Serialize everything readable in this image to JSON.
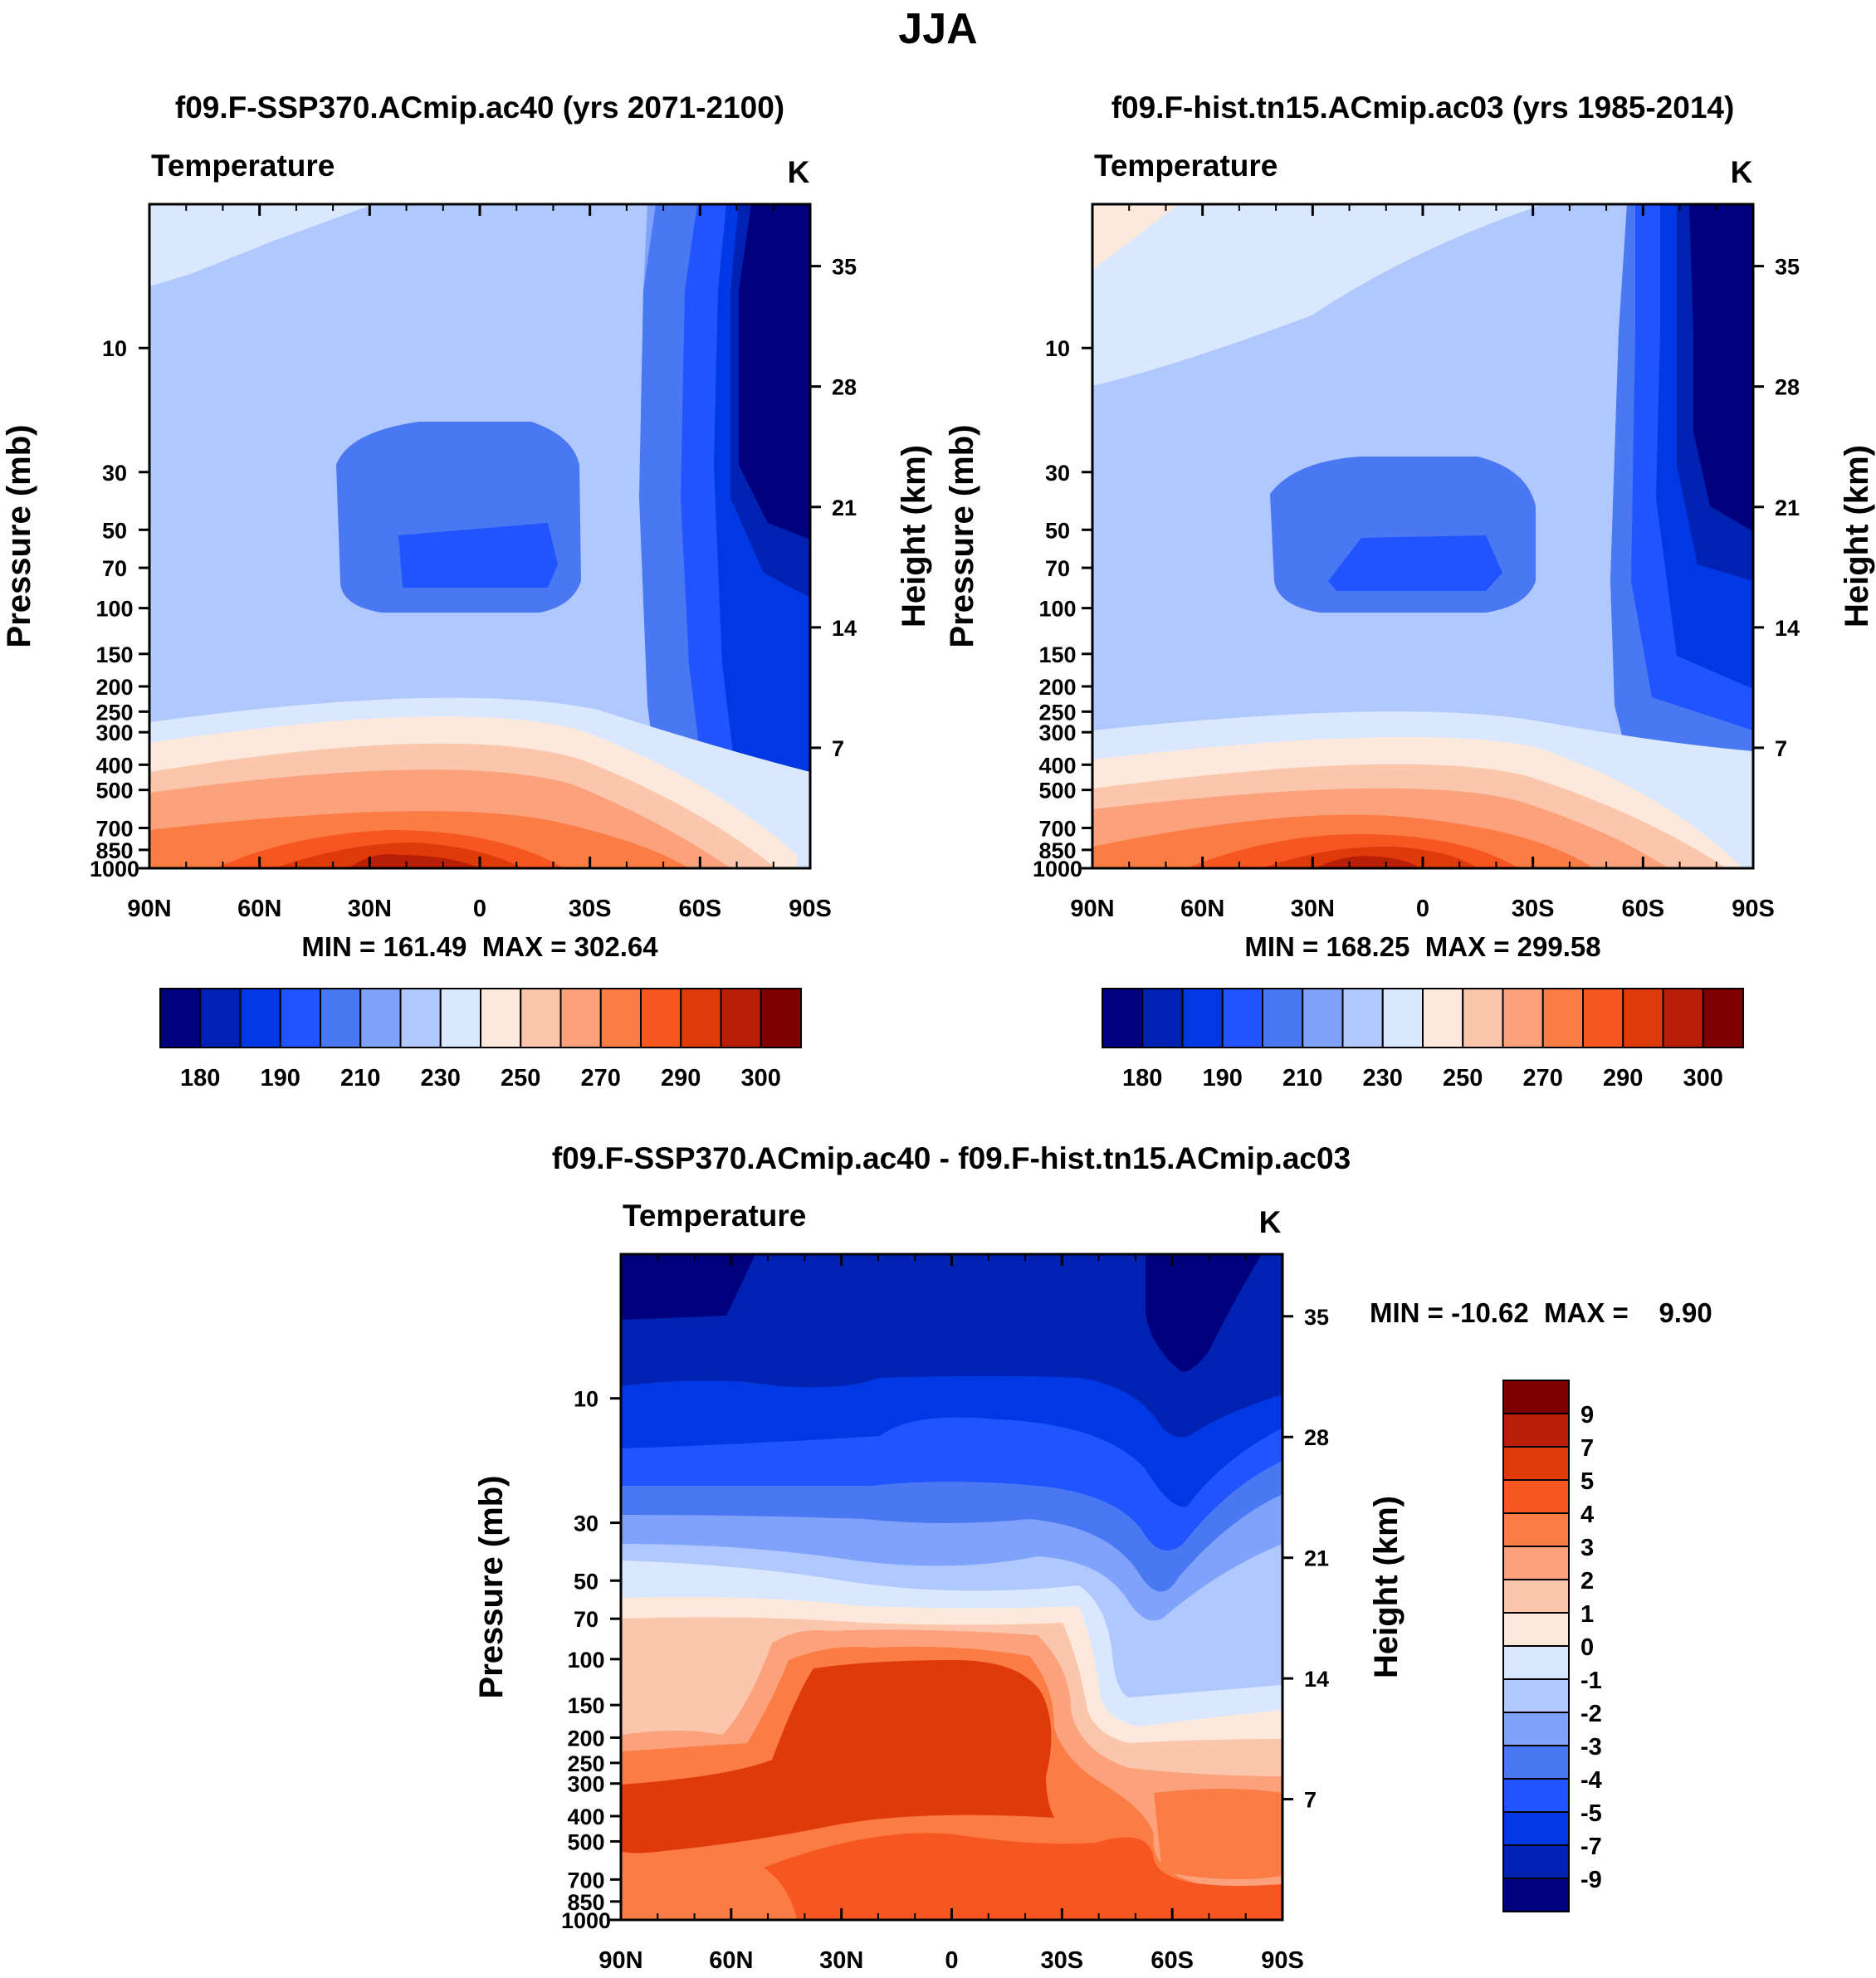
{
  "figure": {
    "title": "JJA"
  },
  "axes": {
    "pressure_label": "Pressure (mb)",
    "height_label": "Height (km)",
    "pressure_ticks": [
      10,
      30,
      50,
      70,
      100,
      150,
      200,
      250,
      300,
      400,
      500,
      700,
      850,
      1000
    ],
    "height_ticks": [
      35,
      28,
      21,
      14,
      7
    ],
    "lat_ticks": [
      "90N",
      "60N",
      "30N",
      "0",
      "30S",
      "60S",
      "90S"
    ],
    "variable_label": "Temperature",
    "units_label": "K"
  },
  "colorbars": {
    "absolute": {
      "colors": [
        "#00007e",
        "#0022b2",
        "#0038e3",
        "#1f54ff",
        "#4a77f2",
        "#7fa2fb",
        "#b0c8fd",
        "#d9e8fe",
        "#fde8dc",
        "#fbc6ab",
        "#fba27c",
        "#fb7c45",
        "#f75620",
        "#e13a0a",
        "#b91e06",
        "#7e0000"
      ],
      "labels": [
        "180",
        "190",
        "210",
        "230",
        "250",
        "270",
        "290",
        "300"
      ]
    },
    "difference": {
      "colors": [
        "#7e0000",
        "#b91e06",
        "#e13a0a",
        "#f75620",
        "#fb7c45",
        "#fba27c",
        "#fbc6ab",
        "#fde8dc",
        "#d9e8fe",
        "#b0c8fd",
        "#7fa2fb",
        "#4a77f2",
        "#1f54ff",
        "#0038e3",
        "#0022b2",
        "#00007e"
      ],
      "labels": [
        "9",
        "7",
        "5",
        "4",
        "3",
        "2",
        "1",
        "0",
        "-1",
        "-2",
        "-3",
        "-4",
        "-5",
        "-7",
        "-9"
      ]
    }
  },
  "chart_data": [
    {
      "type": "heatmap",
      "title": "f09.F-SSP370.ACmip.ac40 (yrs 2071-2100)",
      "variable": "Temperature",
      "units": "K",
      "xlabel": "",
      "ylabel": "Pressure (mb)",
      "ylabel_right": "Height (km)",
      "x_categories": [
        "90N",
        "60N",
        "30N",
        "0",
        "30S",
        "60S",
        "90S"
      ],
      "y_pressure_mb": [
        10,
        30,
        50,
        70,
        100,
        150,
        200,
        250,
        300,
        400,
        500,
        700,
        850,
        1000
      ],
      "y_height_km": [
        35,
        28,
        21,
        14,
        7
      ],
      "min": 161.49,
      "max": 302.64,
      "min_max_text": "MIN = 161.49  MAX = 302.64",
      "contour_levels": [
        180,
        185,
        190,
        200,
        210,
        220,
        230,
        240,
        250,
        260,
        270,
        280,
        290,
        295,
        300
      ],
      "colorbar_labels": [
        180,
        190,
        210,
        230,
        250,
        270,
        290,
        300
      ]
    },
    {
      "type": "heatmap",
      "title": "f09.F-hist.tn15.ACmip.ac03 (yrs 1985-2014)",
      "variable": "Temperature",
      "units": "K",
      "xlabel": "",
      "ylabel": "Pressure (mb)",
      "ylabel_right": "Height (km)",
      "x_categories": [
        "90N",
        "60N",
        "30N",
        "0",
        "30S",
        "60S",
        "90S"
      ],
      "y_pressure_mb": [
        10,
        30,
        50,
        70,
        100,
        150,
        200,
        250,
        300,
        400,
        500,
        700,
        850,
        1000
      ],
      "y_height_km": [
        35,
        28,
        21,
        14,
        7
      ],
      "min": 168.25,
      "max": 299.58,
      "min_max_text": "MIN = 168.25  MAX = 299.58",
      "contour_levels": [
        180,
        185,
        190,
        200,
        210,
        220,
        230,
        240,
        250,
        260,
        270,
        280,
        290,
        295,
        300
      ],
      "colorbar_labels": [
        180,
        190,
        210,
        230,
        250,
        270,
        290,
        300
      ]
    },
    {
      "type": "heatmap",
      "title": "f09.F-SSP370.ACmip.ac40 - f09.F-hist.tn15.ACmip.ac03",
      "variable": "Temperature",
      "units": "K",
      "xlabel": "",
      "ylabel": "Pressure (mb)",
      "ylabel_right": "Height (km)",
      "x_categories": [
        "90N",
        "60N",
        "30N",
        "0",
        "30S",
        "60S",
        "90S"
      ],
      "y_pressure_mb": [
        10,
        30,
        50,
        70,
        100,
        150,
        200,
        250,
        300,
        400,
        500,
        700,
        850,
        1000
      ],
      "y_height_km": [
        35,
        28,
        21,
        14,
        7
      ],
      "min": -10.62,
      "max": 9.9,
      "min_max_text": "MIN = -10.62  MAX =    9.90",
      "contour_levels": [
        -9,
        -7,
        -5,
        -4,
        -3,
        -2,
        -1,
        0,
        1,
        2,
        3,
        4,
        5,
        7,
        9
      ],
      "colorbar_labels": [
        9,
        7,
        5,
        4,
        3,
        2,
        1,
        0,
        -1,
        -2,
        -3,
        -4,
        -5,
        -7,
        -9
      ]
    }
  ]
}
